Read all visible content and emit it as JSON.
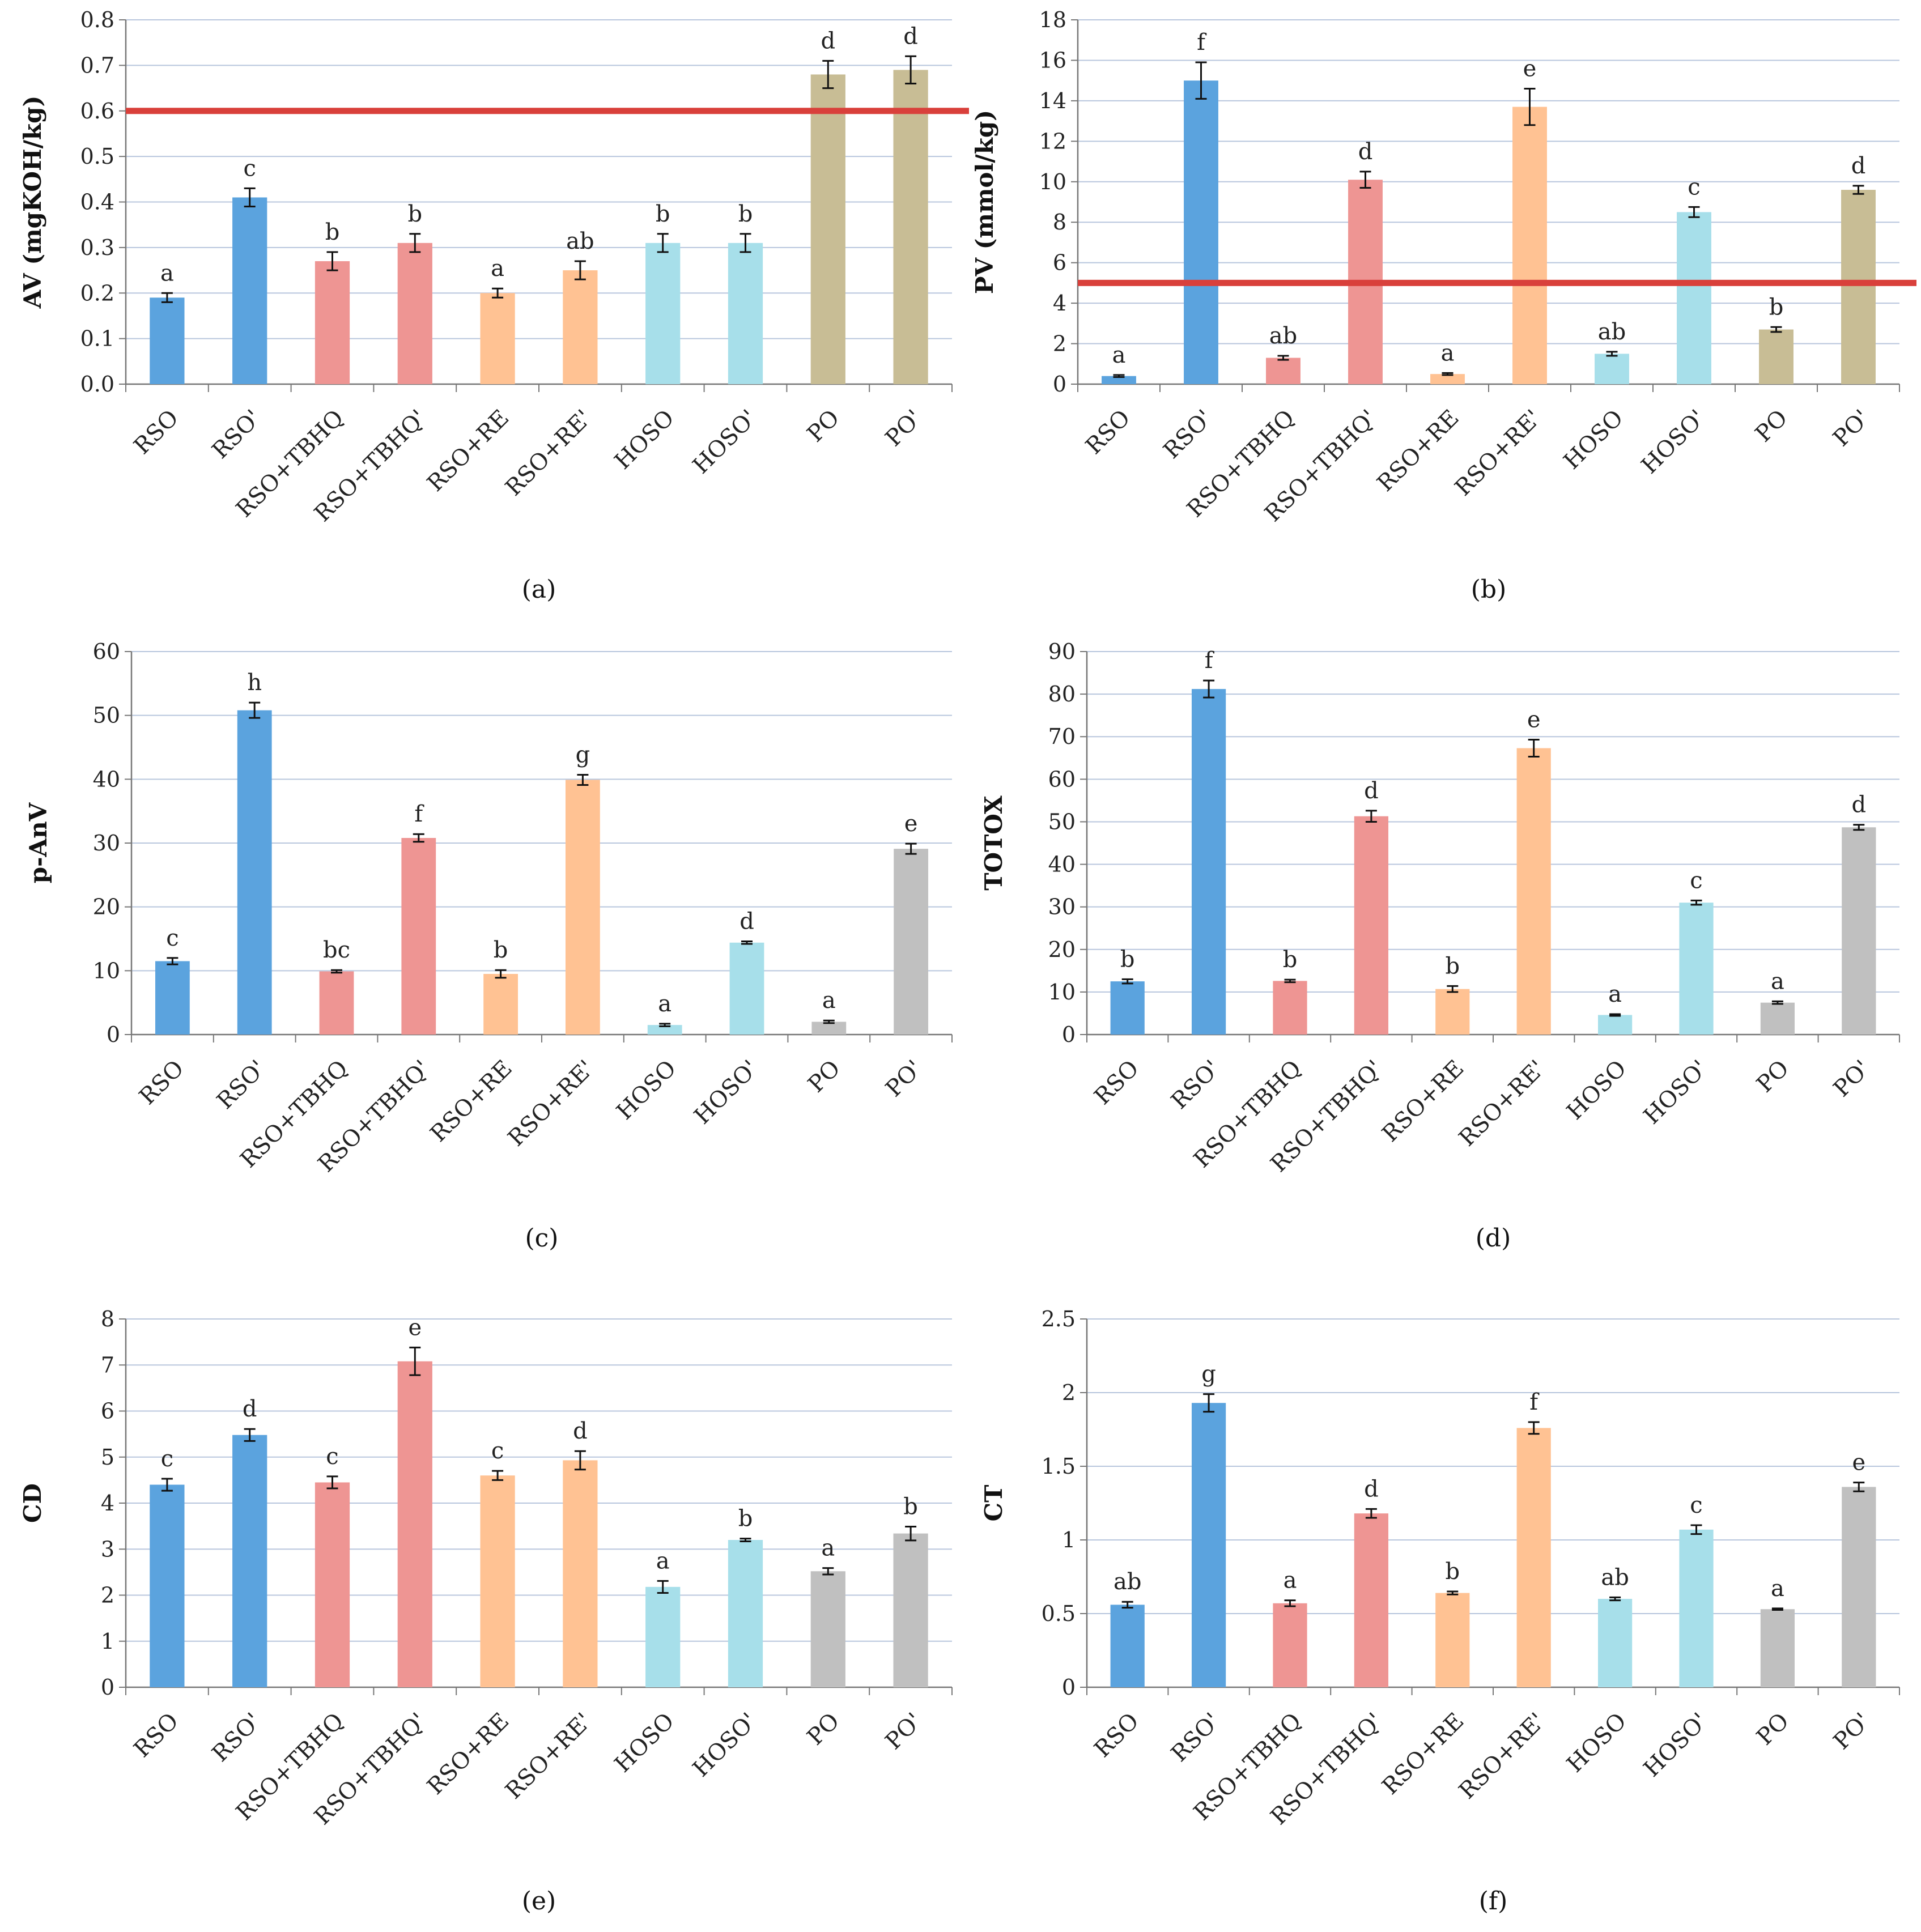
{
  "categories": [
    "RSO",
    "RSO'",
    "RSO+TBHQ",
    "RSO+TBHQ'",
    "RSO+RE",
    "RSO+RE'",
    "HOSO",
    "HOSO'",
    "PO",
    "PO'"
  ],
  "colors": {
    "blue": "#5BA3DE",
    "pink": "#EE9593",
    "orange": "#FFC293",
    "cyan": "#A7DFEA",
    "khaki": "#C8BD95",
    "gray": "#C0C0C0",
    "threshold": "#D9403B",
    "grid": "#B8C6DD",
    "axis": "#777777"
  },
  "chart_data": [
    {
      "type": "bar",
      "panel_label": "(a)",
      "ylabel": "AV (mgKOH/kg)",
      "ylim": [
        0,
        0.8
      ],
      "yticks": [
        "0.0",
        "0.1",
        "0.2",
        "0.3",
        "0.4",
        "0.5",
        "0.6",
        "0.7",
        "0.8"
      ],
      "values": [
        0.19,
        0.41,
        0.27,
        0.31,
        0.2,
        0.25,
        0.31,
        0.31,
        0.68,
        0.69
      ],
      "errors": [
        0.01,
        0.02,
        0.02,
        0.02,
        0.01,
        0.02,
        0.02,
        0.02,
        0.03,
        0.03
      ],
      "letters": [
        "a",
        "c",
        "b",
        "b",
        "a",
        "ab",
        "b",
        "b",
        "d",
        "d"
      ],
      "bar_colors": [
        "#5BA3DE",
        "#5BA3DE",
        "#EE9593",
        "#EE9593",
        "#FFC293",
        "#FFC293",
        "#A7DFEA",
        "#A7DFEA",
        "#C8BD95",
        "#C8BD95"
      ],
      "threshold": 0.6,
      "grid": true
    },
    {
      "type": "bar",
      "panel_label": "(b)",
      "ylabel": "PV (mmol/kg)",
      "ylim": [
        0,
        18
      ],
      "yticks": [
        "0",
        "2",
        "4",
        "6",
        "8",
        "10",
        "12",
        "14",
        "16",
        "18"
      ],
      "values": [
        0.4,
        15.0,
        1.3,
        10.1,
        0.5,
        13.7,
        1.5,
        8.5,
        2.7,
        9.6
      ],
      "errors": [
        0.05,
        0.9,
        0.1,
        0.4,
        0.05,
        0.9,
        0.1,
        0.25,
        0.12,
        0.2
      ],
      "letters": [
        "a",
        "f",
        "ab",
        "d",
        "a",
        "e",
        "ab",
        "c",
        "b",
        "d"
      ],
      "bar_colors": [
        "#5BA3DE",
        "#5BA3DE",
        "#EE9593",
        "#EE9593",
        "#FFC293",
        "#FFC293",
        "#A7DFEA",
        "#A7DFEA",
        "#C8BD95",
        "#C8BD95"
      ],
      "threshold": 5,
      "grid": true
    },
    {
      "type": "bar",
      "panel_label": "(c)",
      "ylabel": "p-AnV",
      "ylim": [
        0,
        60
      ],
      "yticks": [
        "0",
        "10",
        "20",
        "30",
        "40",
        "50",
        "60"
      ],
      "values": [
        11.5,
        50.8,
        9.9,
        30.8,
        9.5,
        39.9,
        1.5,
        14.4,
        2.0,
        29.1
      ],
      "errors": [
        0.5,
        1.2,
        0.2,
        0.6,
        0.6,
        0.8,
        0.2,
        0.2,
        0.2,
        0.8
      ],
      "letters": [
        "c",
        "h",
        "bc",
        "f",
        "b",
        "g",
        "a",
        "d",
        "a",
        "e"
      ],
      "bar_colors": [
        "#5BA3DE",
        "#5BA3DE",
        "#EE9593",
        "#EE9593",
        "#FFC293",
        "#FFC293",
        "#A7DFEA",
        "#A7DFEA",
        "#C0C0C0",
        "#C0C0C0"
      ],
      "grid": true
    },
    {
      "type": "bar",
      "panel_label": "(d)",
      "ylabel": "TOTOX",
      "ylim": [
        0,
        90
      ],
      "yticks": [
        "0",
        "10",
        "20",
        "30",
        "40",
        "50",
        "60",
        "70",
        "80",
        "90"
      ],
      "values": [
        12.5,
        81.2,
        12.6,
        51.3,
        10.7,
        67.3,
        4.6,
        31.0,
        7.5,
        48.7
      ],
      "errors": [
        0.5,
        2.0,
        0.3,
        1.3,
        0.7,
        2.0,
        0.2,
        0.5,
        0.3,
        0.6
      ],
      "letters": [
        "b",
        "f",
        "b",
        "d",
        "b",
        "e",
        "a",
        "c",
        "a",
        "d"
      ],
      "bar_colors": [
        "#5BA3DE",
        "#5BA3DE",
        "#EE9593",
        "#EE9593",
        "#FFC293",
        "#FFC293",
        "#A7DFEA",
        "#A7DFEA",
        "#C0C0C0",
        "#C0C0C0"
      ],
      "grid": true
    },
    {
      "type": "bar",
      "panel_label": "(e)",
      "ylabel": "CD",
      "ylim": [
        0,
        8
      ],
      "yticks": [
        "0",
        "1",
        "2",
        "3",
        "4",
        "5",
        "6",
        "7",
        "8"
      ],
      "values": [
        4.4,
        5.48,
        4.45,
        7.08,
        4.6,
        4.93,
        2.18,
        3.2,
        2.52,
        3.34
      ],
      "errors": [
        0.13,
        0.13,
        0.13,
        0.3,
        0.1,
        0.2,
        0.13,
        0.03,
        0.07,
        0.15
      ],
      "letters": [
        "c",
        "d",
        "c",
        "e",
        "c",
        "d",
        "a",
        "b",
        "a",
        "b"
      ],
      "bar_colors": [
        "#5BA3DE",
        "#5BA3DE",
        "#EE9593",
        "#EE9593",
        "#FFC293",
        "#FFC293",
        "#A7DFEA",
        "#A7DFEA",
        "#C0C0C0",
        "#C0C0C0"
      ],
      "grid": true
    },
    {
      "type": "bar",
      "panel_label": "(f)",
      "ylabel": "CT",
      "ylim": [
        0,
        2.5
      ],
      "yticks": [
        "0",
        "0.5",
        "1",
        "1.5",
        "2",
        "2.5"
      ],
      "values": [
        0.56,
        1.93,
        0.57,
        1.18,
        0.64,
        1.76,
        0.6,
        1.07,
        0.53,
        1.36
      ],
      "errors": [
        0.02,
        0.06,
        0.02,
        0.03,
        0.01,
        0.04,
        0.01,
        0.03,
        0.005,
        0.03
      ],
      "letters": [
        "ab",
        "g",
        "a",
        "d",
        "b",
        "f",
        "ab",
        "c",
        "a",
        "e"
      ],
      "bar_colors": [
        "#5BA3DE",
        "#5BA3DE",
        "#EE9593",
        "#EE9593",
        "#FFC293",
        "#FFC293",
        "#A7DFEA",
        "#A7DFEA",
        "#C0C0C0",
        "#C0C0C0"
      ],
      "grid": true
    }
  ]
}
